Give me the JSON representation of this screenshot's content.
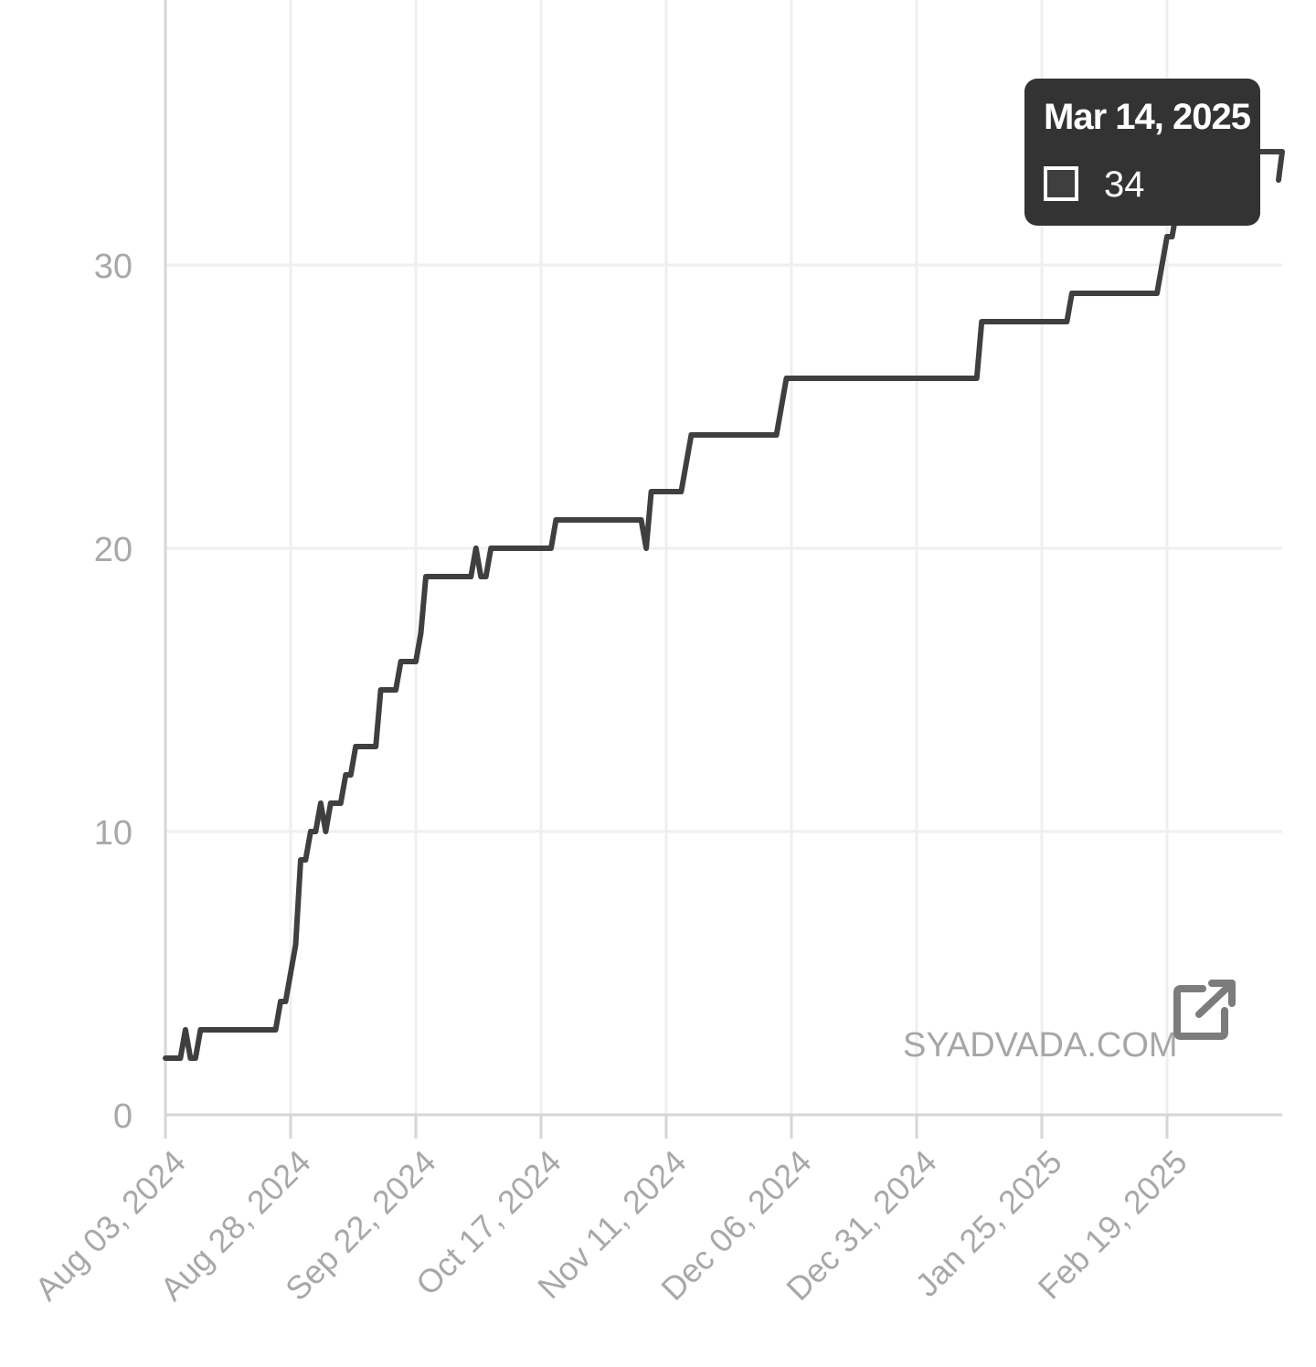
{
  "chart_data": {
    "type": "line",
    "title": "",
    "xlabel": "",
    "ylabel": "",
    "x_tick_labels": [
      "Aug 03, 2024",
      "Aug 28, 2024",
      "Sep 22, 2024",
      "Oct 17, 2024",
      "Nov 11, 2024",
      "Dec 06, 2024",
      "Dec 31, 2024",
      "Jan 25, 2025",
      "Feb 19, 2025"
    ],
    "x_tick_dates": [
      "2024-08-03",
      "2024-08-28",
      "2024-09-22",
      "2024-10-17",
      "2024-11-11",
      "2024-12-06",
      "2024-12-31",
      "2025-01-25",
      "2025-02-19"
    ],
    "y_ticks": [
      0,
      10,
      20,
      30
    ],
    "ylim": [
      0,
      39
    ],
    "xlim": [
      "2024-08-03",
      "2025-03-15"
    ],
    "grid": true,
    "legend": "none",
    "series": [
      {
        "color": "#3f3f3f",
        "points": [
          [
            "2024-08-03",
            2
          ],
          [
            "2024-08-06",
            2
          ],
          [
            "2024-08-07",
            3
          ],
          [
            "2024-08-08",
            2
          ],
          [
            "2024-08-09",
            2
          ],
          [
            "2024-08-10",
            3
          ],
          [
            "2024-08-25",
            3
          ],
          [
            "2024-08-26",
            4
          ],
          [
            "2024-08-27",
            4
          ],
          [
            "2024-08-28",
            5
          ],
          [
            "2024-08-29",
            6
          ],
          [
            "2024-08-30",
            9
          ],
          [
            "2024-08-31",
            9
          ],
          [
            "2024-09-01",
            10
          ],
          [
            "2024-09-02",
            10
          ],
          [
            "2024-09-03",
            11
          ],
          [
            "2024-09-04",
            10
          ],
          [
            "2024-09-05",
            11
          ],
          [
            "2024-09-07",
            11
          ],
          [
            "2024-09-08",
            12
          ],
          [
            "2024-09-09",
            12
          ],
          [
            "2024-09-10",
            13
          ],
          [
            "2024-09-14",
            13
          ],
          [
            "2024-09-15",
            15
          ],
          [
            "2024-09-18",
            15
          ],
          [
            "2024-09-19",
            16
          ],
          [
            "2024-09-22",
            16
          ],
          [
            "2024-09-23",
            17
          ],
          [
            "2024-09-24",
            19
          ],
          [
            "2024-10-03",
            19
          ],
          [
            "2024-10-04",
            20
          ],
          [
            "2024-10-05",
            19
          ],
          [
            "2024-10-06",
            19
          ],
          [
            "2024-10-07",
            20
          ],
          [
            "2024-10-19",
            20
          ],
          [
            "2024-10-20",
            21
          ],
          [
            "2024-11-06",
            21
          ],
          [
            "2024-11-07",
            20
          ],
          [
            "2024-11-08",
            22
          ],
          [
            "2024-11-14",
            22
          ],
          [
            "2024-11-16",
            24
          ],
          [
            "2024-12-03",
            24
          ],
          [
            "2024-12-05",
            26
          ],
          [
            "2025-01-12",
            26
          ],
          [
            "2025-01-13",
            28
          ],
          [
            "2025-01-30",
            28
          ],
          [
            "2025-01-31",
            29
          ],
          [
            "2025-02-17",
            29
          ],
          [
            "2025-02-19",
            31
          ],
          [
            "2025-02-20",
            31
          ],
          [
            "2025-02-21",
            32
          ],
          [
            "2025-02-23",
            32
          ],
          [
            "2025-02-25",
            34
          ],
          [
            "2025-03-14",
            34
          ],
          [
            "2025-03-15",
            33
          ],
          [
            "2025-03-15",
            34
          ]
        ]
      }
    ],
    "annotations": {
      "watermark": "SYADVADA.COM"
    }
  },
  "tooltip": {
    "title": "Mar 14, 2025",
    "value": "34",
    "swatch_color": "#3f3f3f"
  },
  "icons": {
    "external_link": "external-link-icon"
  }
}
